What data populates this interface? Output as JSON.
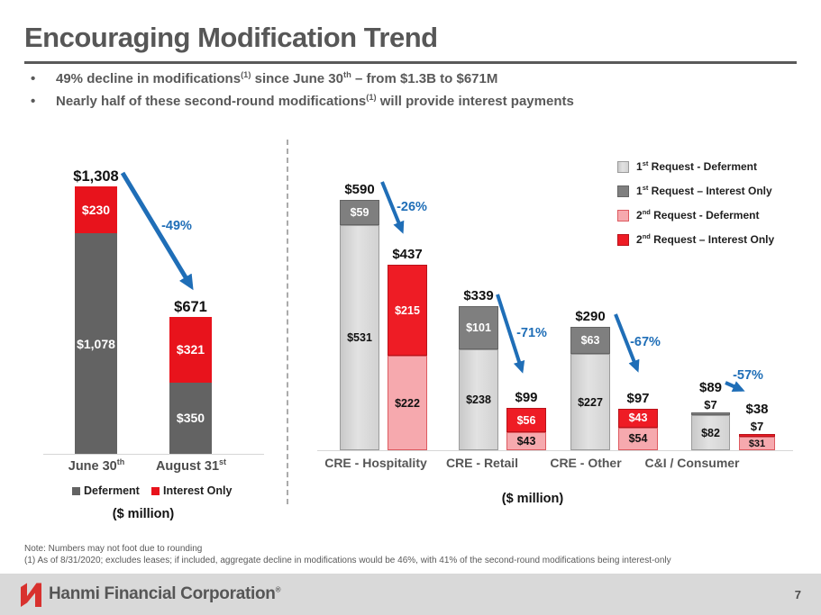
{
  "slide": {
    "title": "Encouraging Modification Trend",
    "page_number": "7"
  },
  "bullets": [
    {
      "parts": [
        {
          "text": "49% decline in modifications"
        },
        {
          "text": "(1)",
          "sup": true
        },
        {
          "text": " since June 30"
        },
        {
          "text": "th",
          "sup": true
        },
        {
          "text": " – from $1.3B to $671M"
        }
      ]
    },
    {
      "parts": [
        {
          "text": "Nearly half of these second-round modifications"
        },
        {
          "text": "(1)",
          "sup": true
        },
        {
          "text": " will provide interest payments"
        }
      ]
    }
  ],
  "left_chart": {
    "change_label": "-49%",
    "unit_label": "($ million)",
    "bars": [
      {
        "total_label": "$1,308",
        "x_label_parts": [
          {
            "text": "June 30"
          },
          {
            "text": "th",
            "sup": true
          }
        ],
        "segments": [
          {
            "key": "seg-left-deferment",
            "label": "$1,078",
            "value": 1078
          },
          {
            "key": "seg-left-interest",
            "label": "$230",
            "value": 230
          }
        ]
      },
      {
        "total_label": "$671",
        "x_label_parts": [
          {
            "text": "August 31"
          },
          {
            "text": "st",
            "sup": true
          }
        ],
        "segments": [
          {
            "key": "seg-left-deferment",
            "label": "$350",
            "value": 350
          },
          {
            "key": "seg-left-interest",
            "label": "$321",
            "value": 321
          }
        ]
      }
    ],
    "legend": [
      {
        "label": "Deferment",
        "key": "seg-left-deferment"
      },
      {
        "label": "Interest Only",
        "key": "seg-left-interest"
      }
    ]
  },
  "right_chart": {
    "unit_label": "($ million)",
    "groups": [
      {
        "label": "CRE - Hospitality",
        "change_label": "-26%",
        "bars": [
          {
            "total_label": "$590",
            "segments": [
              {
                "key": "seg-first-deferment",
                "label": "$531",
                "value": 531
              },
              {
                "key": "seg-first-interest",
                "label": "$59",
                "value": 59
              }
            ]
          },
          {
            "total_label": "$437",
            "segments": [
              {
                "key": "seg-second-deferment",
                "label": "$222",
                "value": 222
              },
              {
                "key": "seg-second-interest",
                "label": "$215",
                "value": 215
              }
            ]
          }
        ]
      },
      {
        "label": "CRE - Retail",
        "change_label": "-71%",
        "bars": [
          {
            "total_label": "$339",
            "segments": [
              {
                "key": "seg-first-deferment",
                "label": "$238",
                "value": 238
              },
              {
                "key": "seg-first-interest",
                "label": "$101",
                "value": 101
              }
            ]
          },
          {
            "total_label": "$99",
            "segments": [
              {
                "key": "seg-second-deferment",
                "label": "$43",
                "value": 43
              },
              {
                "key": "seg-second-interest",
                "label": "$56",
                "value": 56
              }
            ]
          }
        ]
      },
      {
        "label": "CRE - Other",
        "change_label": "-67%",
        "bars": [
          {
            "total_label": "$290",
            "segments": [
              {
                "key": "seg-first-deferment",
                "label": "$227",
                "value": 227
              },
              {
                "key": "seg-first-interest",
                "label": "$63",
                "value": 63
              }
            ]
          },
          {
            "total_label": "$97",
            "segments": [
              {
                "key": "seg-second-deferment",
                "label": "$54",
                "value": 54
              },
              {
                "key": "seg-second-interest",
                "label": "$43",
                "value": 43
              }
            ]
          }
        ]
      },
      {
        "label": "C&I / Consumer",
        "change_label": "-57%",
        "bars": [
          {
            "total_label": "$89",
            "segments": [
              {
                "key": "seg-first-deferment",
                "label": "$82",
                "value": 82
              },
              {
                "key": "seg-first-interest",
                "label": "$7",
                "value": 7,
                "label_pos": "above"
              }
            ]
          },
          {
            "total_label": "$38",
            "segments": [
              {
                "key": "seg-second-deferment",
                "label": "$31",
                "value": 31
              },
              {
                "key": "seg-second-interest",
                "label": "$7",
                "value": 7,
                "label_pos": "above"
              }
            ]
          }
        ]
      }
    ],
    "legend": {
      "items": [
        {
          "num": "1",
          "sup": "st",
          "rest": " Request - Deferment",
          "key": "seg-first-deferment"
        },
        {
          "num": "1",
          "sup": "st",
          "rest": " Request – Interest Only",
          "key": "seg-first-interest"
        },
        {
          "num": "2",
          "sup": "nd",
          "rest": " Request - Deferment",
          "key": "seg-second-deferment"
        },
        {
          "num": "2",
          "sup": "nd",
          "rest": " Request – Interest Only",
          "key": "seg-second-interest"
        }
      ]
    }
  },
  "footnotes": [
    "Note: Numbers may not foot due to rounding",
    "(1) As of 8/31/2020; excludes leases; if included, aggregate decline in modifications would be 46%, with 41% of the second-round modifications being interest-only"
  ],
  "footer": {
    "company": "Hanmi Financial Corporation",
    "trademark": "®"
  },
  "colors": {
    "accent_blue": "#1f6eb7",
    "red_interest_only": "#ee1c25",
    "pink_second_deferment": "#f6a9ae",
    "light_gray_first_deferment": "#d9d9d9",
    "mid_gray_first_interest": "#7f7f7f",
    "dark_gray_deferment": "#636363",
    "text_gray": "#595959",
    "footer_gray": "#d9d9d9"
  },
  "chart_data": [
    {
      "type": "bar",
      "subtype": "stacked",
      "categories": [
        "June 30th",
        "August 31st"
      ],
      "series": [
        {
          "name": "Deferment",
          "color": "#636363",
          "values": [
            1078,
            350
          ]
        },
        {
          "name": "Interest Only",
          "color": "#e8131c",
          "values": [
            230,
            321
          ]
        }
      ],
      "totals": [
        1308,
        671
      ],
      "change_pct": -49,
      "xlabel": "($ million)",
      "legend_position": "bottom",
      "grid": false
    },
    {
      "type": "bar",
      "subtype": "grouped-stacked",
      "categories": [
        "CRE - Hospitality",
        "CRE - Retail",
        "CRE - Other",
        "C&I / Consumer"
      ],
      "series": [
        {
          "name": "1st Request - Deferment",
          "color": "#d9d9d9",
          "bar": "first",
          "values": [
            531,
            238,
            227,
            82
          ]
        },
        {
          "name": "1st Request – Interest Only",
          "color": "#7f7f7f",
          "bar": "first",
          "values": [
            59,
            101,
            63,
            7
          ]
        },
        {
          "name": "2nd Request - Deferment",
          "color": "#f6a9ae",
          "bar": "second",
          "values": [
            222,
            43,
            54,
            31
          ]
        },
        {
          "name": "2nd Request – Interest Only",
          "color": "#ee1c25",
          "bar": "second",
          "values": [
            215,
            56,
            43,
            7
          ]
        }
      ],
      "totals_first_request": [
        590,
        339,
        290,
        89
      ],
      "totals_second_request": [
        437,
        99,
        97,
        38
      ],
      "changes_pct": [
        -26,
        -71,
        -67,
        -57
      ],
      "xlabel": "($ million)",
      "legend_position": "top-right",
      "grid": false
    }
  ]
}
